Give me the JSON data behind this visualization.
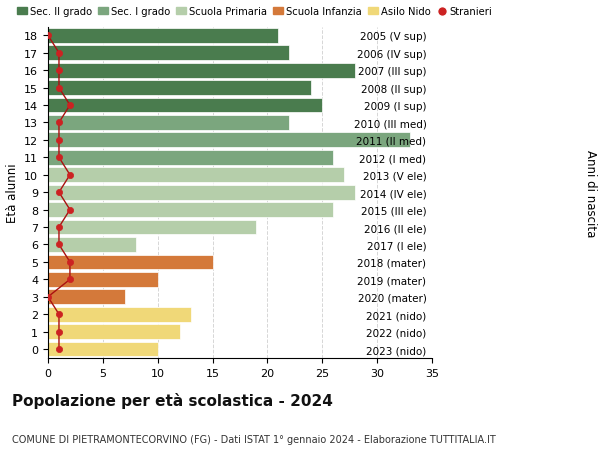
{
  "ages": [
    18,
    17,
    16,
    15,
    14,
    13,
    12,
    11,
    10,
    9,
    8,
    7,
    6,
    5,
    4,
    3,
    2,
    1,
    0
  ],
  "right_labels": [
    "2005 (V sup)",
    "2006 (IV sup)",
    "2007 (III sup)",
    "2008 (II sup)",
    "2009 (I sup)",
    "2010 (III med)",
    "2011 (II med)",
    "2012 (I med)",
    "2013 (V ele)",
    "2014 (IV ele)",
    "2015 (III ele)",
    "2016 (II ele)",
    "2017 (I ele)",
    "2018 (mater)",
    "2019 (mater)",
    "2020 (mater)",
    "2021 (nido)",
    "2022 (nido)",
    "2023 (nido)"
  ],
  "bar_values": [
    21,
    22,
    28,
    24,
    25,
    22,
    33,
    26,
    27,
    28,
    26,
    19,
    8,
    15,
    10,
    7,
    13,
    12,
    10
  ],
  "bar_colors": [
    "#4a7c4e",
    "#4a7c4e",
    "#4a7c4e",
    "#4a7c4e",
    "#4a7c4e",
    "#7ba67e",
    "#7ba67e",
    "#7ba67e",
    "#b5ceaa",
    "#b5ceaa",
    "#b5ceaa",
    "#b5ceaa",
    "#b5ceaa",
    "#d4793a",
    "#d4793a",
    "#d4793a",
    "#f0d878",
    "#f0d878",
    "#f0d878"
  ],
  "stranieri_values": [
    0,
    1,
    1,
    1,
    2,
    1,
    1,
    1,
    2,
    1,
    2,
    1,
    1,
    2,
    2,
    0,
    1,
    1,
    1
  ],
  "legend_labels": [
    "Sec. II grado",
    "Sec. I grado",
    "Scuola Primaria",
    "Scuola Infanzia",
    "Asilo Nido",
    "Stranieri"
  ],
  "legend_colors": [
    "#4a7c4e",
    "#7ba67e",
    "#b5ceaa",
    "#d4793a",
    "#f0d878",
    "#cc2222"
  ],
  "title": "Popolazione per età scolastica - 2024",
  "subtitle": "COMUNE DI PIETRAMONTECORVINO (FG) - Dati ISTAT 1° gennaio 2024 - Elaborazione TUTTITALIA.IT",
  "ylabel": "Età alunni",
  "right_ylabel": "Anni di nascita",
  "xlim": [
    0,
    35
  ],
  "ylim": [
    -0.5,
    18.5
  ],
  "background_color": "#ffffff",
  "grid_color": "#cccccc"
}
